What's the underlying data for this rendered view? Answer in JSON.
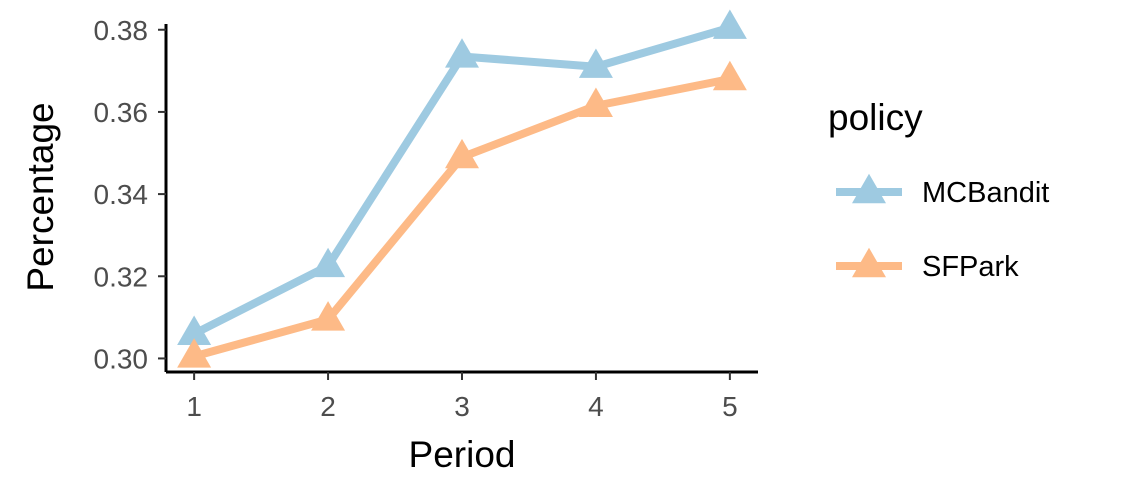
{
  "chart_data": {
    "type": "line",
    "xlabel": "Period",
    "ylabel": "Percentage",
    "x": [
      1,
      2,
      3,
      4,
      5
    ],
    "x_tick_labels": [
      "1",
      "2",
      "3",
      "4",
      "5"
    ],
    "y_ticks": [
      0.3,
      0.32,
      0.34,
      0.36,
      0.38
    ],
    "y_tick_labels": [
      "0.30",
      "0.32",
      "0.34",
      "0.36",
      "0.38"
    ],
    "xlim": [
      0.79,
      5.21
    ],
    "ylim": [
      0.2967,
      0.3814
    ],
    "grid": false,
    "legend": {
      "title": "policy",
      "position": "right"
    },
    "marker": "triangle",
    "series": [
      {
        "name": "MCBandit",
        "color": "#9ECAE1",
        "values": [
          0.306,
          0.3225,
          0.3735,
          0.371,
          0.3805
        ]
      },
      {
        "name": "SFPark",
        "color": "#FDBA87",
        "values": [
          0.3005,
          0.3095,
          0.349,
          0.3615,
          0.368
        ]
      }
    ]
  }
}
